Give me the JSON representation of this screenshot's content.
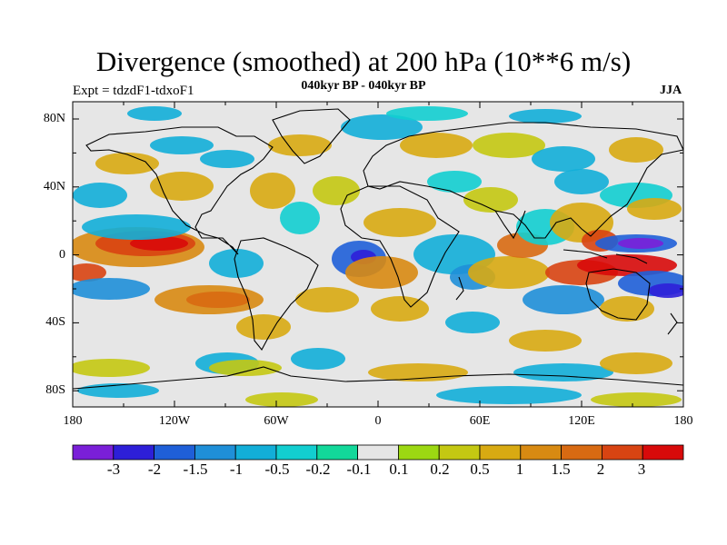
{
  "title": "Divergence (smoothed) at 200 hPa (10**6 m/s)",
  "subtitle_left": "Expt = tdzdF1-tdxoF1",
  "subtitle_center": "040kyr BP - 040kyr BP",
  "subtitle_right": "JJA",
  "lat_labels": [
    "80N",
    "40N",
    "0",
    "40S",
    "80S"
  ],
  "lon_labels": [
    "180",
    "120W",
    "60W",
    "0",
    "60E",
    "120E",
    "180"
  ],
  "colorbar": {
    "colors": [
      "#7a1fd8",
      "#2d1fd8",
      "#1f5fd8",
      "#1f8fd8",
      "#12aed8",
      "#12ced0",
      "#12d89a",
      "#e6e6e6",
      "#9cd812",
      "#c4c812",
      "#d8aa12",
      "#d88a12",
      "#d86a12",
      "#d84412",
      "#d80a0a"
    ],
    "labels": [
      "-3",
      "-2",
      "-1.5",
      "-1",
      "-0.5",
      "-0.2",
      "-0.1",
      "0.1",
      "0.2",
      "0.5",
      "1",
      "1.5",
      "2",
      "3"
    ]
  }
}
